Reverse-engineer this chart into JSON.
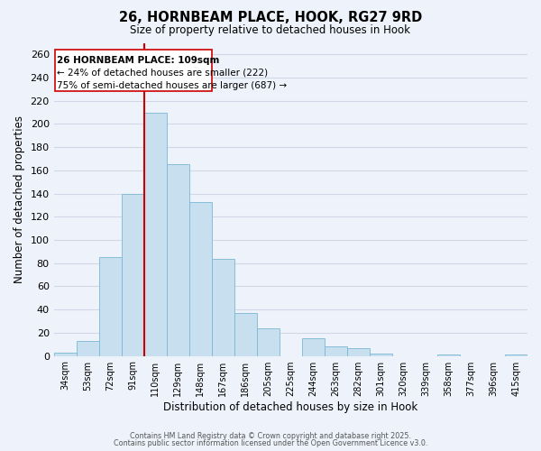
{
  "title": "26, HORNBEAM PLACE, HOOK, RG27 9RD",
  "subtitle": "Size of property relative to detached houses in Hook",
  "xlabel": "Distribution of detached houses by size in Hook",
  "ylabel": "Number of detached properties",
  "bar_color": "#c8dff0",
  "bar_edge_color": "#7ab8d4",
  "background_color": "#eef2fa",
  "grid_color": "#d0d8e8",
  "categories": [
    "34sqm",
    "53sqm",
    "72sqm",
    "91sqm",
    "110sqm",
    "129sqm",
    "148sqm",
    "167sqm",
    "186sqm",
    "205sqm",
    "225sqm",
    "244sqm",
    "263sqm",
    "282sqm",
    "301sqm",
    "320sqm",
    "339sqm",
    "358sqm",
    "377sqm",
    "396sqm",
    "415sqm"
  ],
  "values": [
    3,
    13,
    85,
    140,
    210,
    165,
    133,
    84,
    37,
    24,
    0,
    15,
    8,
    7,
    2,
    0,
    0,
    1,
    0,
    0,
    1
  ],
  "ylim": [
    0,
    270
  ],
  "yticks": [
    0,
    20,
    40,
    60,
    80,
    100,
    120,
    140,
    160,
    180,
    200,
    220,
    240,
    260
  ],
  "vline_color": "#cc0000",
  "vline_bar_index": 4,
  "annotation_title": "26 HORNBEAM PLACE: 109sqm",
  "annotation_line1": "← 24% of detached houses are smaller (222)",
  "annotation_line2": "75% of semi-detached houses are larger (687) →",
  "annotation_box_color": "#ffffff",
  "annotation_box_edge": "#cc0000",
  "footer1": "Contains HM Land Registry data © Crown copyright and database right 2025.",
  "footer2": "Contains public sector information licensed under the Open Government Licence v3.0."
}
